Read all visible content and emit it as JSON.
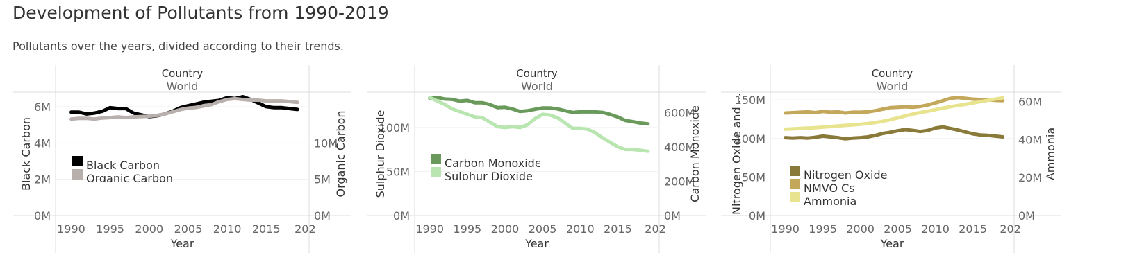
{
  "title": "Development of Pollutants from 1990-2019",
  "subtitle": "Pollutants over the years, divided according to their trends.",
  "colors": {
    "black_carbon": "#000000",
    "organic_carbon": "#b8b0ad",
    "carbon_monoxide": "#6a9a5b",
    "sulphur_dioxide": "#b9e5b0",
    "nitrogen_oxide": "#8a7a3a",
    "nmvocs": "#c3a75a",
    "ammonia": "#e7e38f",
    "grid": "#e6e6e6",
    "axis_text": "#666666"
  },
  "chart_data": [
    {
      "type": "line",
      "header_field": "Country",
      "header_value": "World",
      "xlabel": "Year",
      "x_ticks": [
        "1990",
        "1995",
        "2000",
        "2005",
        "2010",
        "2015",
        "202"
      ],
      "xlim": [
        1988,
        2020.5
      ],
      "left_axis": {
        "label": "Black Carbon",
        "ylim": [
          0,
          6800000
        ],
        "ticks": [
          0,
          2000000,
          4000000,
          6000000
        ],
        "tick_labels": [
          "0M",
          "2M",
          "4M",
          "6M"
        ]
      },
      "right_axis": {
        "label": "Organic Carbon",
        "ylim": [
          0,
          17000000
        ],
        "ticks": [
          0,
          5000000,
          10000000
        ],
        "tick_labels": [
          "0M",
          "5M",
          "10M"
        ]
      },
      "legend": [
        "Black Carbon",
        "Organic Carbon"
      ],
      "x": [
        1990,
        1991,
        1992,
        1993,
        1994,
        1995,
        1996,
        1997,
        1998,
        1999,
        2000,
        2001,
        2002,
        2003,
        2004,
        2005,
        2006,
        2007,
        2008,
        2009,
        2010,
        2011,
        2012,
        2013,
        2014,
        2015,
        2016,
        2017,
        2018,
        2019
      ],
      "series": [
        {
          "name": "Black Carbon",
          "axis": "left",
          "values": [
            5700000,
            5700000,
            5600000,
            5650000,
            5750000,
            5950000,
            5900000,
            5900000,
            5650000,
            5550000,
            5450000,
            5500000,
            5600000,
            5750000,
            5950000,
            6050000,
            6150000,
            6250000,
            6300000,
            6350000,
            6500000,
            6450000,
            6550000,
            6400000,
            6200000,
            6000000,
            5950000,
            5950000,
            5900000,
            5850000
          ]
        },
        {
          "name": "Organic Carbon",
          "axis": "right",
          "values": [
            13300000,
            13400000,
            13400000,
            13300000,
            13450000,
            13500000,
            13600000,
            13500000,
            13600000,
            13650000,
            13700000,
            13800000,
            14000000,
            14300000,
            14600000,
            14800000,
            14900000,
            15100000,
            15300000,
            15700000,
            16000000,
            16100000,
            16000000,
            15900000,
            15900000,
            15800000,
            15800000,
            15800000,
            15700000,
            15600000
          ]
        }
      ]
    },
    {
      "type": "line",
      "header_field": "Country",
      "header_value": "World",
      "xlabel": "Year",
      "x_ticks": [
        "1990",
        "1995",
        "2000",
        "2005",
        "2010",
        "2015",
        "202"
      ],
      "xlim": [
        1988,
        2020.5
      ],
      "left_axis": {
        "label": "Sulphur Dioxide",
        "ylim": [
          0,
          140000000
        ],
        "ticks": [
          0,
          50000000,
          100000000
        ],
        "tick_labels": [
          "0M",
          "50M",
          "100M"
        ]
      },
      "right_axis": {
        "label": "Carbon Monoxide",
        "ylim": [
          0,
          720000000
        ],
        "ticks": [
          0,
          200000000,
          400000000,
          600000000
        ],
        "tick_labels": [
          "0M",
          "200M",
          "400M",
          "600M"
        ]
      },
      "legend": [
        "Carbon Monoxide",
        "Sulphur Dioxide"
      ],
      "x": [
        1990,
        1991,
        1992,
        1993,
        1994,
        1995,
        1996,
        1997,
        1998,
        1999,
        2000,
        2001,
        2002,
        2003,
        2004,
        2005,
        2006,
        2007,
        2008,
        2009,
        2010,
        2011,
        2012,
        2013,
        2014,
        2015,
        2016,
        2017,
        2018,
        2019
      ],
      "series": [
        {
          "name": "Carbon Monoxide",
          "axis": "right",
          "values": [
            685000000,
            690000000,
            680000000,
            678000000,
            668000000,
            672000000,
            658000000,
            658000000,
            648000000,
            630000000,
            632000000,
            622000000,
            608000000,
            612000000,
            620000000,
            628000000,
            628000000,
            622000000,
            612000000,
            602000000,
            605000000,
            605000000,
            605000000,
            602000000,
            590000000,
            575000000,
            555000000,
            548000000,
            540000000,
            535000000
          ]
        },
        {
          "name": "Sulphur Dioxide",
          "axis": "left",
          "values": [
            134000000,
            130000000,
            126000000,
            121000000,
            118000000,
            115000000,
            112000000,
            111000000,
            106000000,
            101000000,
            100000000,
            101000000,
            100000000,
            103000000,
            110000000,
            115000000,
            114000000,
            111000000,
            105000000,
            99000000,
            99000000,
            98000000,
            94000000,
            88000000,
            83000000,
            78000000,
            75000000,
            75000000,
            74000000,
            73000000
          ]
        }
      ]
    },
    {
      "type": "line",
      "header_field": "Country",
      "header_value": "World",
      "xlabel": "Year",
      "x_ticks": [
        "1990",
        "1995",
        "2000",
        "2005",
        "2010",
        "2015",
        "202"
      ],
      "xlim": [
        1988,
        2020.5
      ],
      "left_axis": {
        "label": "Nitrogen Oxide and ...",
        "ylim": [
          0,
          160000000
        ],
        "ticks": [
          0,
          50000000,
          100000000,
          150000000
        ],
        "tick_labels": [
          "0M",
          "50M",
          "100M",
          "150M"
        ]
      },
      "right_axis": {
        "label": "Ammonia",
        "ylim": [
          0,
          65000000
        ],
        "ticks": [
          0,
          20000000,
          40000000,
          60000000
        ],
        "tick_labels": [
          "0M",
          "20M",
          "40M",
          "60M"
        ]
      },
      "legend": [
        "Nitrogen Oxide",
        "NMVO Cs",
        "Ammonia"
      ],
      "x": [
        1990,
        1991,
        1992,
        1993,
        1994,
        1995,
        1996,
        1997,
        1998,
        1999,
        2000,
        2001,
        2002,
        2003,
        2004,
        2005,
        2006,
        2007,
        2008,
        2009,
        2010,
        2011,
        2012,
        2013,
        2014,
        2015,
        2016,
        2017,
        2018,
        2019
      ],
      "series": [
        {
          "name": "Nitrogen Oxide",
          "axis": "left",
          "values": [
            101000000,
            100500000,
            101000000,
            100500000,
            101500000,
            103000000,
            102000000,
            101000000,
            99500000,
            100500000,
            101000000,
            102000000,
            104000000,
            106500000,
            108000000,
            110000000,
            111500000,
            110500000,
            109000000,
            110500000,
            113500000,
            115000000,
            113000000,
            111000000,
            108500000,
            106000000,
            104500000,
            104000000,
            103000000,
            102000000
          ]
        },
        {
          "name": "NMVO Cs",
          "axis": "left",
          "values": [
            133000000,
            133500000,
            134000000,
            134500000,
            133500000,
            135000000,
            134000000,
            134500000,
            133000000,
            134000000,
            134000000,
            134500000,
            136000000,
            138000000,
            140000000,
            140500000,
            141000000,
            140500000,
            141500000,
            143500000,
            146000000,
            149000000,
            152000000,
            153000000,
            152000000,
            151000000,
            150500000,
            150000000,
            149500000,
            149000000
          ]
        },
        {
          "name": "Ammonia",
          "axis": "right",
          "values": [
            45500000,
            45700000,
            45900000,
            46100000,
            46300000,
            46600000,
            46900000,
            47200000,
            47500000,
            47800000,
            48100000,
            48500000,
            49000000,
            49700000,
            50500000,
            51500000,
            52500000,
            53500000,
            54300000,
            55000000,
            55800000,
            56600000,
            57400000,
            58000000,
            58600000,
            59300000,
            60000000,
            60700000,
            61400000,
            62000000
          ]
        }
      ]
    }
  ]
}
